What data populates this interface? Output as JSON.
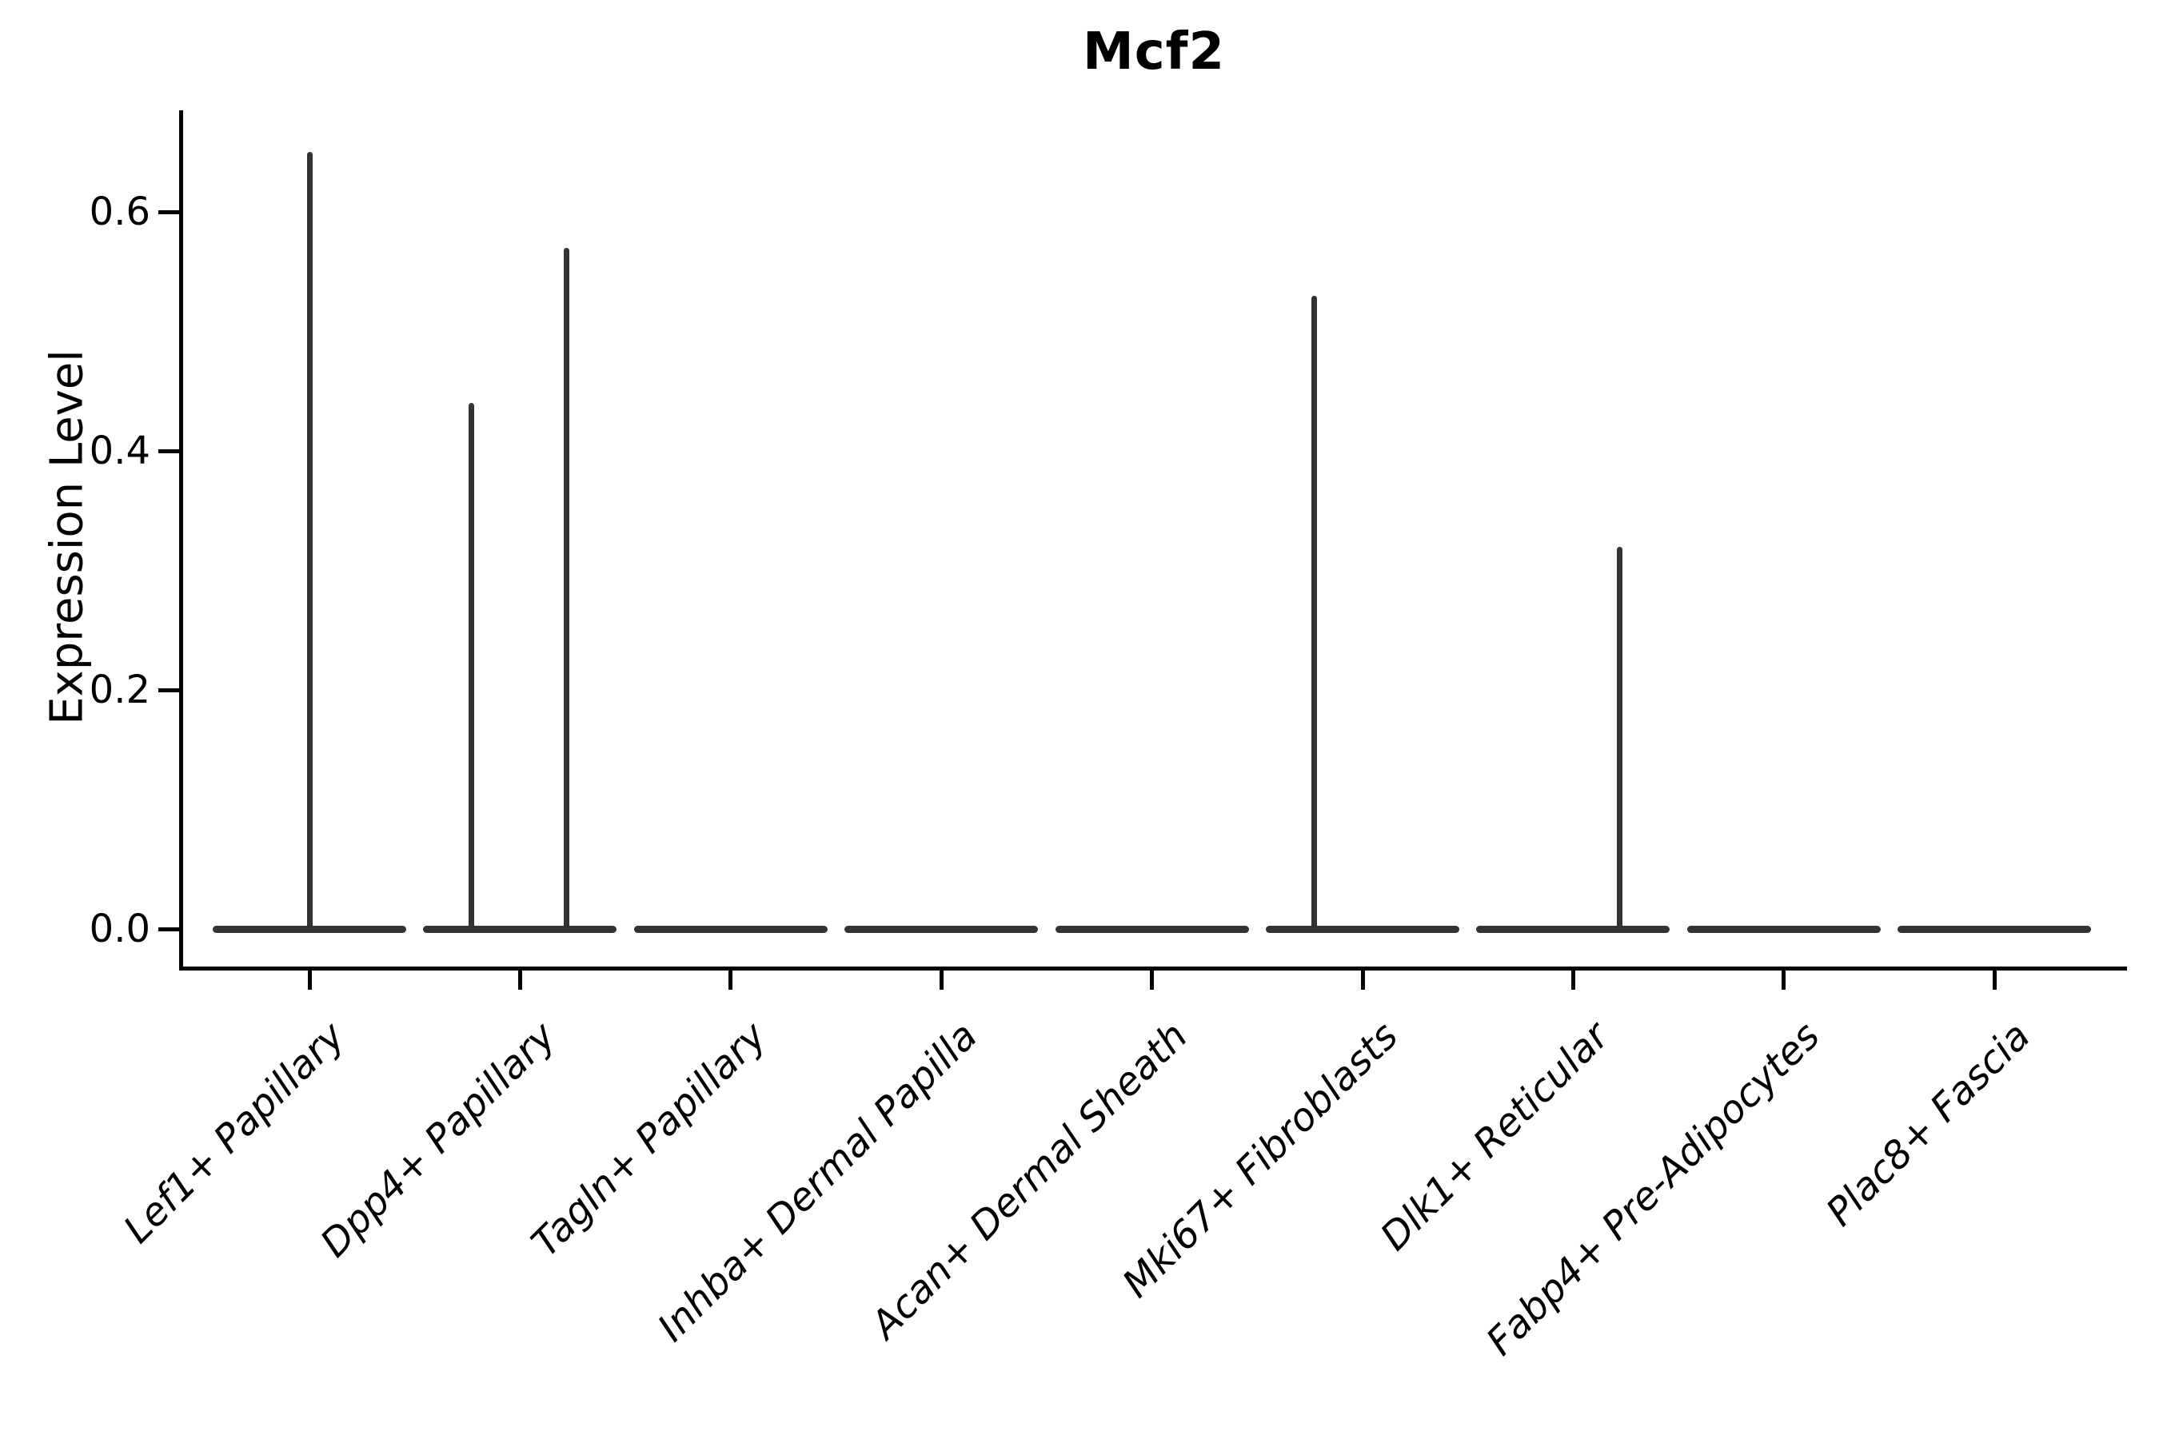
{
  "figure": {
    "title": "Mcf2",
    "ylabel": "Expression Level"
  },
  "chart_data": {
    "type": "violin",
    "title": "Mcf2",
    "xlabel": "",
    "ylabel": "Expression Level",
    "legend": null,
    "grid": false,
    "ylim": [
      -0.03,
      0.68
    ],
    "ytick_labels": [
      "0.0",
      "0.2",
      "0.4",
      "0.6"
    ],
    "ytick_values": [
      0.0,
      0.2,
      0.4,
      0.6
    ],
    "categories": [
      "Lef1+ Papillary",
      "Dpp4+ Papillary",
      "Tagln+ Papillary",
      "Inhba+ Dermal Papilla",
      "Acan+ Dermal Sheath",
      "Mki67+ Fibroblasts",
      "Dlk1+ Reticular",
      "Fabp4+ Pre-Adipocytes",
      "Plac8+ Fascia"
    ],
    "violins": [
      {
        "category": "Lef1+ Papillary",
        "body": "flat-at-zero",
        "spikes": [
          {
            "offset_frac": 0.0,
            "value": 0.65
          }
        ]
      },
      {
        "category": "Dpp4+ Papillary",
        "body": "flat-at-zero",
        "spikes": [
          {
            "offset_frac": -0.23,
            "value": 0.44
          },
          {
            "offset_frac": 0.22,
            "value": 0.57
          }
        ]
      },
      {
        "category": "Tagln+ Papillary",
        "body": "flat-at-zero",
        "spikes": []
      },
      {
        "category": "Inhba+ Dermal Papilla",
        "body": "flat-at-zero",
        "spikes": []
      },
      {
        "category": "Acan+ Dermal Sheath",
        "body": "flat-at-zero",
        "spikes": []
      },
      {
        "category": "Mki67+ Fibroblasts",
        "body": "flat-at-zero",
        "spikes": [
          {
            "offset_frac": -0.23,
            "value": 0.53
          }
        ]
      },
      {
        "category": "Dlk1+ Reticular",
        "body": "flat-at-zero",
        "spikes": [
          {
            "offset_frac": 0.22,
            "value": 0.32
          }
        ]
      },
      {
        "category": "Fabp4+ Pre-Adipocytes",
        "body": "flat-at-zero",
        "spikes": []
      },
      {
        "category": "Plac8+ Fascia",
        "body": "flat-at-zero",
        "spikes": []
      }
    ],
    "colors": {
      "violin": "#333333",
      "axis": "#000000",
      "text": "#000000",
      "background": "#ffffff"
    }
  }
}
